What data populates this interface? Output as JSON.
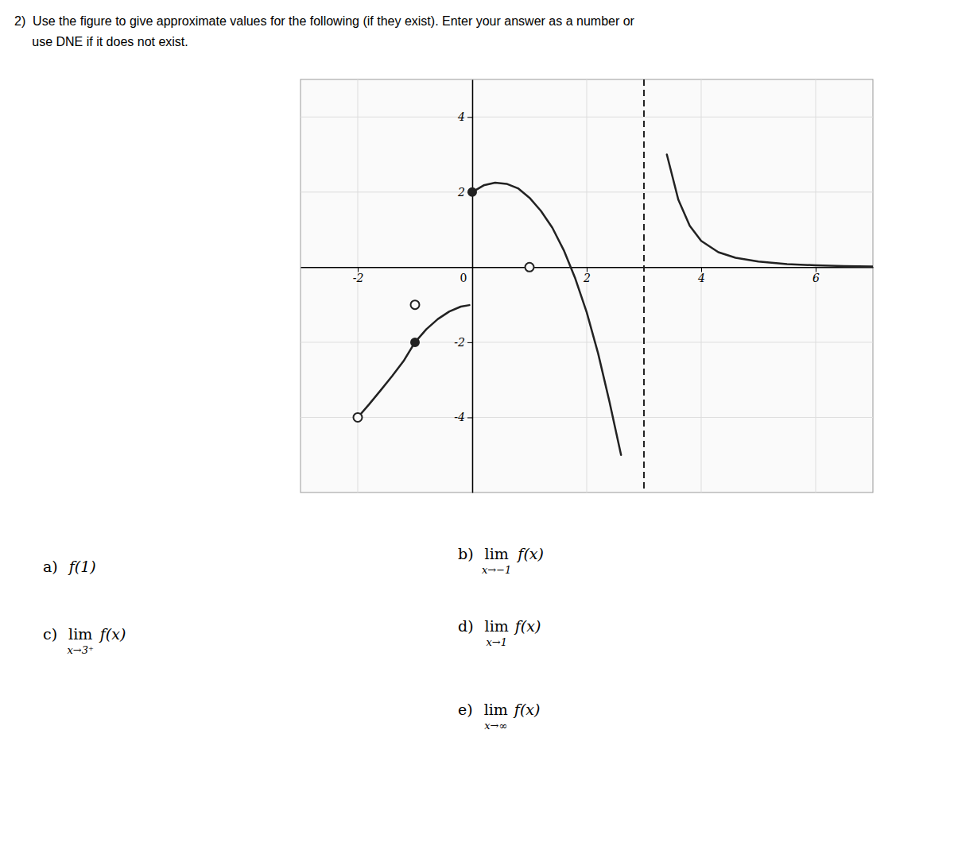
{
  "chart_data": {
    "type": "line",
    "title": "2)  Use the figure to give approximate values for the following (if they exist). Enter your answer as a number or",
    "subtitle": "     use DNE if it does not exist.",
    "xlim": [
      -3.0,
      7.0
    ],
    "ylim": [
      -6.0,
      5.0
    ],
    "xticks": [
      -2,
      0,
      2,
      4,
      6
    ],
    "yticks": [
      -4,
      -2,
      2,
      4
    ],
    "grid": true,
    "asymptote_x": 3.0,
    "series": [
      {
        "type": "line",
        "x": [
          -2.0,
          -1.8,
          -1.6,
          -1.4,
          -1.2,
          -1.0,
          -0.8,
          -0.6,
          -0.4,
          -0.2,
          -0.05
        ],
        "values": [
          -4.0,
          -3.65,
          -3.28,
          -2.9,
          -2.5,
          -2.0,
          -1.65,
          -1.38,
          -1.18,
          -1.05,
          -1.01
        ]
      },
      {
        "type": "line",
        "x": [
          0.0,
          0.2,
          0.4,
          0.6,
          0.8,
          1.0,
          1.2,
          1.4,
          1.6,
          1.8,
          2.0,
          2.2,
          2.4,
          2.6
        ],
        "values": [
          2.0,
          2.18,
          2.25,
          2.22,
          2.1,
          1.85,
          1.5,
          1.05,
          0.45,
          -0.3,
          -1.2,
          -2.3,
          -3.6,
          -5.0
        ]
      },
      {
        "type": "line",
        "x": [
          3.4,
          3.6,
          3.8,
          4.0,
          4.3,
          4.6,
          5.0,
          5.5,
          6.0,
          6.5,
          7.0
        ],
        "values": [
          3.0,
          1.8,
          1.1,
          0.7,
          0.4,
          0.25,
          0.15,
          0.08,
          0.05,
          0.03,
          0.02
        ]
      },
      {
        "type": "scatter",
        "marker": "open_circle",
        "x": [
          -2.0,
          -1.0,
          1.0
        ],
        "values": [
          -4.0,
          -1.0,
          0.0
        ]
      },
      {
        "type": "scatter",
        "marker": "circle",
        "x": [
          -1.0,
          0.0
        ],
        "values": [
          -2.0,
          2.0
        ]
      }
    ],
    "annotations": [
      {
        "label": "a)",
        "text": "f(1)"
      },
      {
        "label": "b)",
        "text": "lim",
        "subscript": "x→−1",
        "expr": "f(x)"
      },
      {
        "label": "c)",
        "text": "lim",
        "subscript": "x→3⁺",
        "expr": "f(x)"
      },
      {
        "label": "d)",
        "text": "lim",
        "subscript": "x→1",
        "expr": "f(x)"
      },
      {
        "label": "e)",
        "text": "lim",
        "subscript": "x→∞",
        "expr": "f(x)"
      }
    ]
  }
}
